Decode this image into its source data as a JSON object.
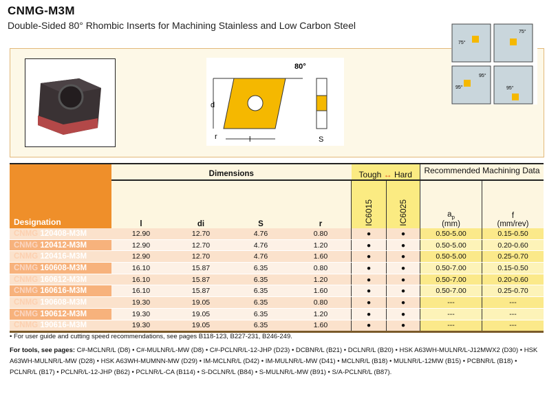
{
  "title": "CNMG-M3M",
  "subtitle": "Double-Sided 80° Rhombic Inserts for Machining Stainless and Low Carbon Steel",
  "diagram": {
    "angle": "80°",
    "d": "d",
    "l": "l",
    "r": "r",
    "s": "S"
  },
  "icons": {
    "a1": "75°",
    "a2": "75°",
    "a3": "95°",
    "a4": "95°",
    "a5": "95°"
  },
  "table": {
    "designation": "Designation",
    "dimensions": "Dimensions",
    "cols": [
      "l",
      "di",
      "S",
      "r"
    ],
    "tough": "Tough",
    "hard": "Hard",
    "arrow": "↔",
    "grades": [
      "IC6015",
      "IC6025"
    ],
    "rec": "Recommended Machining Data",
    "ap": "ap",
    "ap_sub": "p",
    "ap_base": "a",
    "ap_unit": "(mm)",
    "f": "f",
    "f_unit": "(mm/rev)",
    "rows": [
      {
        "pre": "CNMG",
        "code": "120408-M3M",
        "l": "12.90",
        "di": "12.70",
        "s": "4.76",
        "r": "0.80",
        "g1": "●",
        "g2": "●",
        "ap": "0.50-5.00",
        "f": "0.15-0.50"
      },
      {
        "pre": "CNMG",
        "code": "120412-M3M",
        "l": "12.90",
        "di": "12.70",
        "s": "4.76",
        "r": "1.20",
        "g1": "●",
        "g2": "●",
        "ap": "0.50-5.00",
        "f": "0.20-0.60"
      },
      {
        "pre": "CNMG",
        "code": "120416-M3M",
        "l": "12.90",
        "di": "12.70",
        "s": "4.76",
        "r": "1.60",
        "g1": "●",
        "g2": "●",
        "ap": "0.50-5.00",
        "f": "0.25-0.70"
      },
      {
        "pre": "CNMG",
        "code": "160608-M3M",
        "l": "16.10",
        "di": "15.87",
        "s": "6.35",
        "r": "0.80",
        "g1": "●",
        "g2": "●",
        "ap": "0.50-7.00",
        "f": "0.15-0.50"
      },
      {
        "pre": "CNMG",
        "code": "160612-M3M",
        "l": "16.10",
        "di": "15.87",
        "s": "6.35",
        "r": "1.20",
        "g1": "●",
        "g2": "●",
        "ap": "0.50-7.00",
        "f": "0.20-0.60"
      },
      {
        "pre": "CNMG",
        "code": "160616-M3M",
        "l": "16.10",
        "di": "15.87",
        "s": "6.35",
        "r": "1.60",
        "g1": "●",
        "g2": "●",
        "ap": "0.50-7.00",
        "f": "0.25-0.70"
      },
      {
        "pre": "CNMG",
        "code": "190608-M3M",
        "l": "19.30",
        "di": "19.05",
        "s": "6.35",
        "r": "0.80",
        "g1": "●",
        "g2": "●",
        "ap": "---",
        "f": "---"
      },
      {
        "pre": "CNMG",
        "code": "190612-M3M",
        "l": "19.30",
        "di": "19.05",
        "s": "6.35",
        "r": "1.20",
        "g1": "●",
        "g2": "●",
        "ap": "---",
        "f": "---"
      },
      {
        "pre": "CNMG",
        "code": "190616-M3M",
        "l": "19.30",
        "di": "19.05",
        "s": "6.35",
        "r": "1.60",
        "g1": "●",
        "g2": "●",
        "ap": "---",
        "f": "---"
      }
    ]
  },
  "note": "• For user guide and cutting speed recommendations, see pages B118-123, B227-231, B246-249.",
  "tools_label": "For tools, see pages:",
  "tools": "C#-MCLNR/L (D8) • C#-MULNR/L-MW (D8) • C#-PCLNR/L-12-JHP (D23) • DCBNR/L (B21) • DCLNR/L (B20) • HSK A63WH-MULNR/L-J12MWX2 (D30) • HSK A63WH-MULNR/L-MW (D28) • HSK A63WH-MUMNN-MW (D29) • IM-MCLNR/L (D42) • IM-MULNR/L-MW (D41) • MCLNR/L (B18) • MULNR/L-12MW (B15) • PCBNR/L (B18) • PCLNR/L (B17) • PCLNR/L-12-JHP (B62) • PCLNR/L-CA (B114) • S-DCLNR/L (B84) • S-MULNR/L-MW (B91) • S/A-PCLNR/L (B87).",
  "colors": {
    "orange": "#ef8f2a",
    "yellow": "#fbe98a",
    "insert": "#f5b800"
  }
}
